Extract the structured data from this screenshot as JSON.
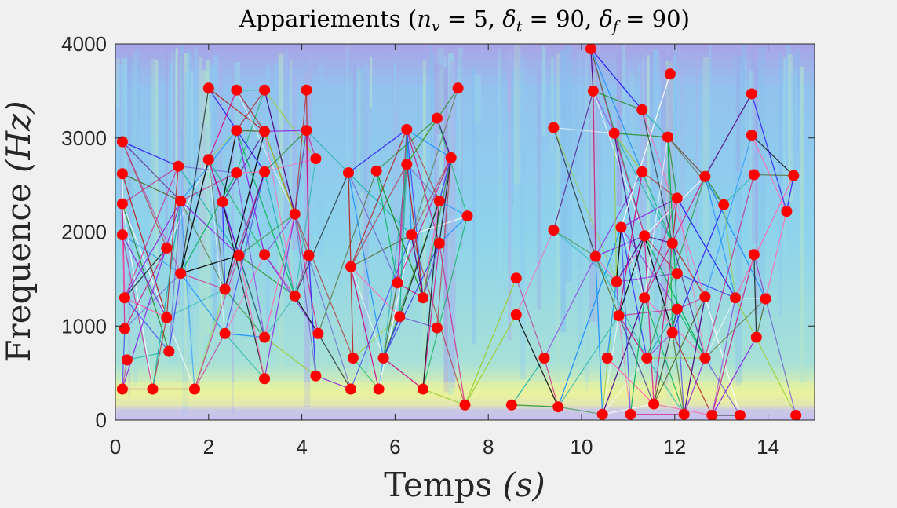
{
  "chart_data": {
    "type": "scatter",
    "title": "Appariements (n_v = 5, δ_t = 90, δ_f = 90)",
    "title_parts": {
      "prefix": "Appariements (",
      "nv": "n",
      "nv_sub": "v",
      "nv_val": " = 5, ",
      "dt": "δ",
      "dt_sub": "t",
      "dt_val": " = 90, ",
      "df": "δ",
      "df_sub": "f",
      "df_val": " = 90)"
    },
    "xlabel": "Temps (s)",
    "xlabel_parts": {
      "word": "Temps ",
      "unit": "(s)"
    },
    "ylabel": "Frequence (Hz)",
    "ylabel_parts": {
      "word": "Frequence ",
      "unit": "(Hz)"
    },
    "xlim": [
      0,
      15
    ],
    "ylim": [
      0,
      4000
    ],
    "xticks": [
      0,
      2,
      4,
      6,
      8,
      10,
      12,
      14
    ],
    "yticks": [
      0,
      1000,
      2000,
      3000,
      4000
    ],
    "background": "spectrogram",
    "marker_color": "#ff0000",
    "points": [
      [
        0.15,
        2960
      ],
      [
        0.15,
        2620
      ],
      [
        0.15,
        2300
      ],
      [
        0.15,
        1970
      ],
      [
        0.2,
        1300
      ],
      [
        0.2,
        970
      ],
      [
        0.25,
        640
      ],
      [
        0.15,
        330
      ],
      [
        0.8,
        330
      ],
      [
        1.1,
        1830
      ],
      [
        1.1,
        1090
      ],
      [
        1.15,
        730
      ],
      [
        1.35,
        2700
      ],
      [
        1.4,
        2330
      ],
      [
        1.4,
        1560
      ],
      [
        1.7,
        330
      ],
      [
        2.0,
        3530
      ],
      [
        2.0,
        2770
      ],
      [
        2.3,
        2320
      ],
      [
        2.35,
        1390
      ],
      [
        2.35,
        920
      ],
      [
        2.6,
        3510
      ],
      [
        2.6,
        3080
      ],
      [
        2.6,
        2630
      ],
      [
        2.65,
        1750
      ],
      [
        3.2,
        3510
      ],
      [
        3.2,
        3070
      ],
      [
        3.2,
        2640
      ],
      [
        3.2,
        1760
      ],
      [
        3.2,
        880
      ],
      [
        3.2,
        440
      ],
      [
        3.85,
        2190
      ],
      [
        3.85,
        1320
      ],
      [
        4.1,
        3510
      ],
      [
        4.1,
        3080
      ],
      [
        4.15,
        1750
      ],
      [
        4.3,
        2780
      ],
      [
        4.35,
        920
      ],
      [
        4.3,
        470
      ],
      [
        5.0,
        2630
      ],
      [
        5.05,
        1630
      ],
      [
        5.1,
        660
      ],
      [
        5.05,
        330
      ],
      [
        5.6,
        2650
      ],
      [
        5.65,
        330
      ],
      [
        5.75,
        660
      ],
      [
        6.05,
        1460
      ],
      [
        6.1,
        1100
      ],
      [
        6.25,
        3090
      ],
      [
        6.25,
        2720
      ],
      [
        6.35,
        1970
      ],
      [
        6.6,
        330
      ],
      [
        6.6,
        1300
      ],
      [
        6.9,
        3210
      ],
      [
        6.9,
        980
      ],
      [
        6.95,
        1880
      ],
      [
        6.95,
        2330
      ],
      [
        7.2,
        2790
      ],
      [
        7.35,
        3530
      ],
      [
        7.5,
        160
      ],
      [
        7.55,
        2170
      ],
      [
        8.5,
        160
      ],
      [
        8.6,
        1510
      ],
      [
        8.6,
        1120
      ],
      [
        9.2,
        660
      ],
      [
        9.4,
        3110
      ],
      [
        9.4,
        2020
      ],
      [
        9.5,
        140
      ],
      [
        10.2,
        3950
      ],
      [
        10.25,
        3500
      ],
      [
        10.3,
        1740
      ],
      [
        10.45,
        60
      ],
      [
        10.55,
        660
      ],
      [
        10.7,
        3050
      ],
      [
        10.75,
        1470
      ],
      [
        10.8,
        1110
      ],
      [
        10.85,
        2050
      ],
      [
        11.05,
        60
      ],
      [
        11.3,
        3300
      ],
      [
        11.3,
        2640
      ],
      [
        11.35,
        1960
      ],
      [
        11.35,
        1300
      ],
      [
        11.4,
        660
      ],
      [
        11.55,
        170
      ],
      [
        11.9,
        3680
      ],
      [
        11.85,
        3010
      ],
      [
        11.95,
        1880
      ],
      [
        11.95,
        930
      ],
      [
        12.05,
        2360
      ],
      [
        12.05,
        1560
      ],
      [
        12.05,
        1180
      ],
      [
        12.2,
        60
      ],
      [
        12.65,
        2590
      ],
      [
        12.65,
        1310
      ],
      [
        12.65,
        660
      ],
      [
        12.8,
        50
      ],
      [
        13.05,
        2290
      ],
      [
        13.3,
        1300
      ],
      [
        13.4,
        50
      ],
      [
        13.65,
        3470
      ],
      [
        13.65,
        3030
      ],
      [
        13.7,
        2610
      ],
      [
        13.7,
        1760
      ],
      [
        13.75,
        880
      ],
      [
        13.95,
        1290
      ],
      [
        14.4,
        2220
      ],
      [
        14.55,
        2600
      ],
      [
        14.6,
        50
      ]
    ]
  }
}
